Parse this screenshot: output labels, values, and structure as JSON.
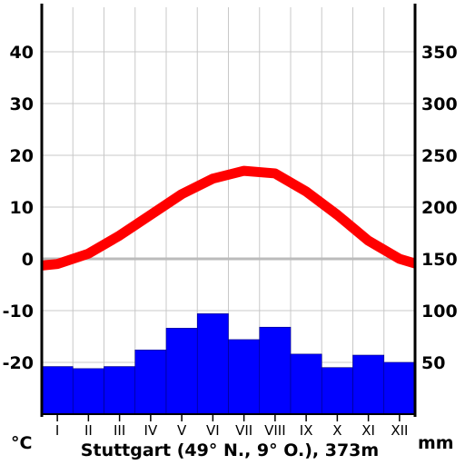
{
  "chart_data": {
    "type": "climate-diagram",
    "title": "Stuttgart (49° N., 9° O.), 373m",
    "categories": [
      "I",
      "II",
      "III",
      "IV",
      "V",
      "VI",
      "VII",
      "VIII",
      "IX",
      "X",
      "XI",
      "XII"
    ],
    "left_axis": {
      "label": "°C",
      "ticks": [
        "40",
        "30",
        "20",
        "10",
        "0",
        "-10",
        "-20"
      ],
      "range": [
        -30,
        48
      ]
    },
    "right_axis": {
      "label": "mm",
      "ticks": [
        "350",
        "300",
        "250",
        "200",
        "150",
        "100",
        "50"
      ],
      "range": [
        10,
        400
      ]
    },
    "series": [
      {
        "kind": "line",
        "axis": "left",
        "color": "#ff0000",
        "values": [
          -1,
          1,
          4.5,
          8.5,
          12.5,
          15.5,
          17,
          16.5,
          13,
          8.5,
          3.5,
          0
        ]
      },
      {
        "kind": "bar",
        "axis": "right",
        "color": "#0000ff",
        "values": [
          46,
          44,
          46,
          62,
          83,
          97,
          72,
          84,
          58,
          45,
          57,
          50
        ]
      }
    ],
    "grid": true,
    "zero_line_color": "#bbbbbb"
  }
}
